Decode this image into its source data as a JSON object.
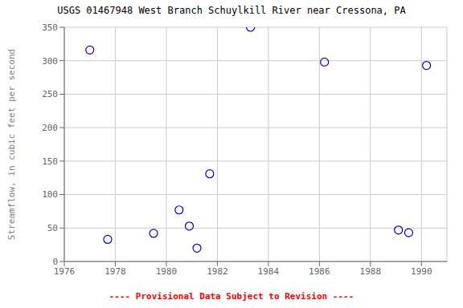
{
  "chart_data": {
    "type": "scatter",
    "title": "USGS 01467948 West Branch Schuylkill River near Cressona, PA",
    "y_label": "Streamflow, in cubic feet per second",
    "x": [
      1977.0,
      1977.7,
      1979.5,
      1980.5,
      1980.9,
      1981.2,
      1981.7,
      1983.3,
      1986.2,
      1989.1,
      1989.5,
      1990.2
    ],
    "values": [
      316,
      33,
      42,
      77,
      53,
      20,
      131,
      350,
      298,
      47,
      43,
      293
    ],
    "color": "#0000CC",
    "marker": "circle",
    "xlim": [
      1976,
      1991
    ],
    "ylim": [
      0,
      350
    ],
    "xticks": [
      1976,
      1978,
      1980,
      1982,
      1984,
      1986,
      1988,
      1990
    ],
    "yticks": [
      0,
      50,
      100,
      150,
      200,
      250,
      300,
      350
    ],
    "grid": true,
    "annotations": [
      {
        "text": "---- Provisional Data Subject to Revision ----",
        "color": "#ff0000"
      }
    ]
  }
}
